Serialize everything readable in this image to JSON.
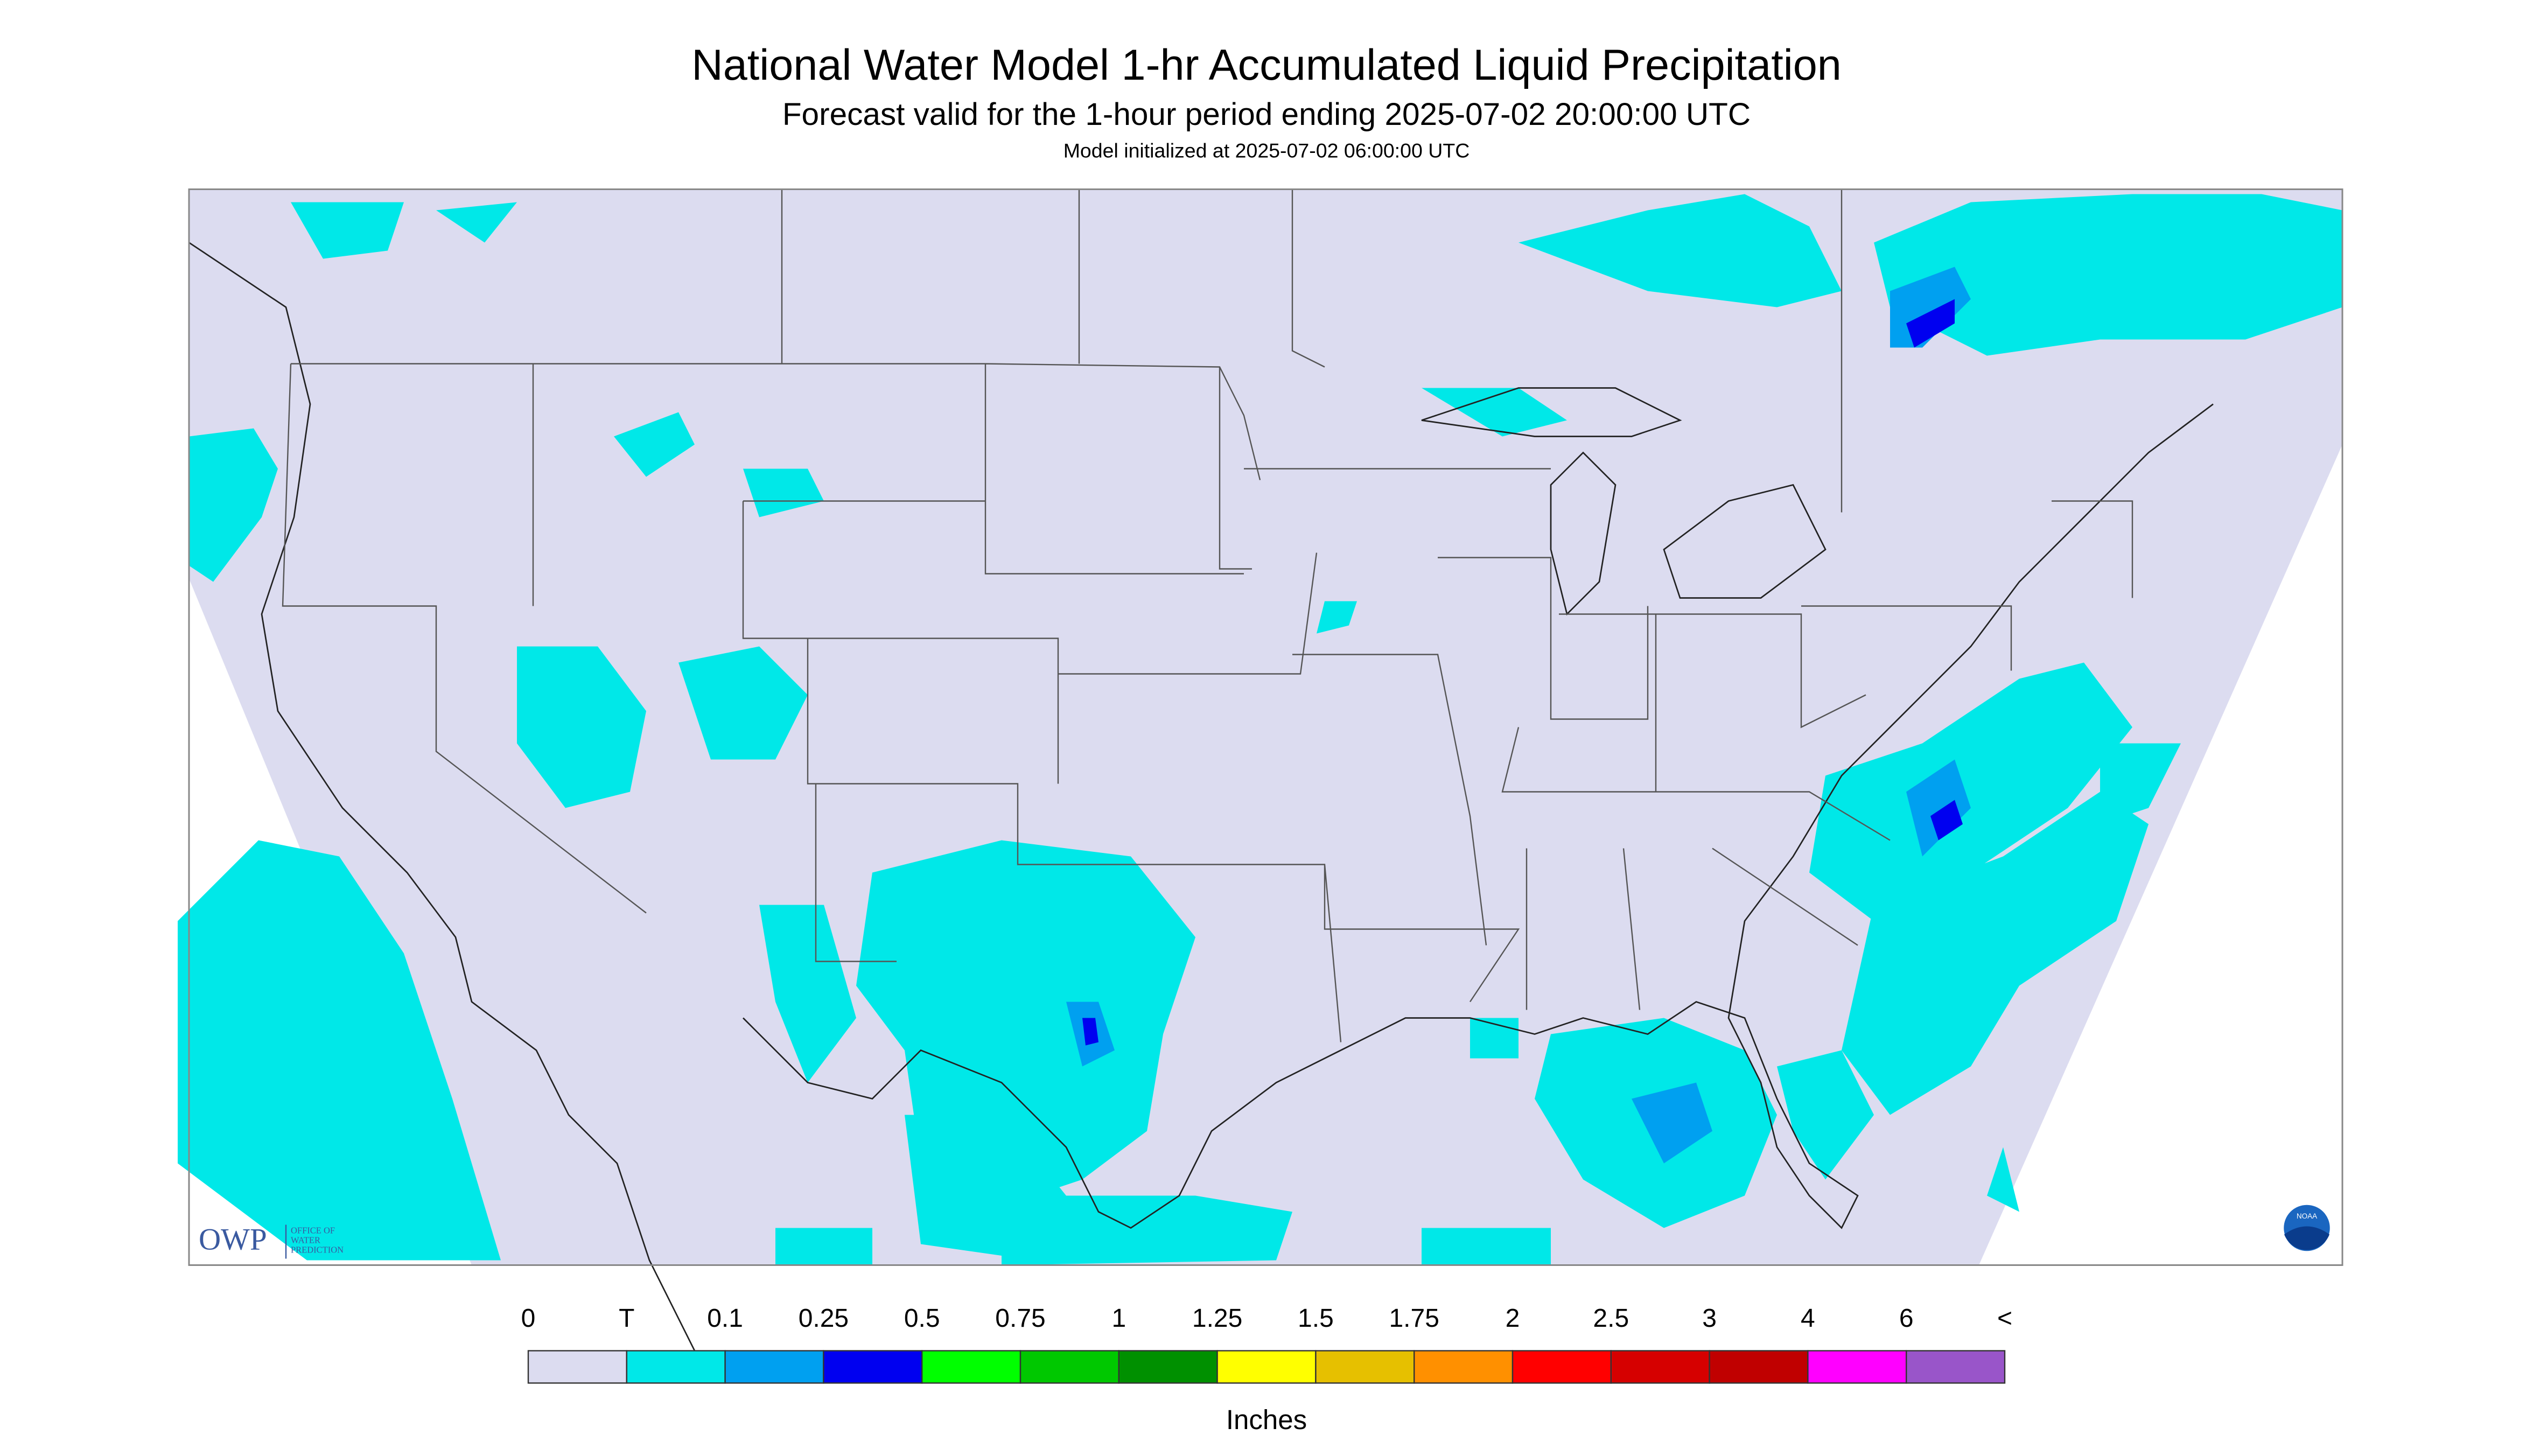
{
  "header": {
    "title": "National Water Model 1-hr Accumulated Liquid Precipitation",
    "subtitle": "Forecast valid for the 1-hour period ending 2025-07-02 20:00:00 UTC",
    "note": "Model initialized at 2025-07-02 06:00:00 UTC"
  },
  "legend": {
    "labels": [
      "0",
      "T",
      "0.1",
      "0.25",
      "0.5",
      "0.75",
      "1",
      "1.25",
      "1.5",
      "1.75",
      "2",
      "2.5",
      "3",
      "4",
      "6",
      "<"
    ],
    "colors": [
      "#dcdcf0",
      "#00e8e8",
      "#00a0f0",
      "#0000f0",
      "#00ff00",
      "#00c800",
      "#009000",
      "#ffff00",
      "#e6c000",
      "#ff9000",
      "#ff0000",
      "#d60000",
      "#c00000",
      "#ff00ff",
      "#9955c9"
    ],
    "unit": "Inches"
  },
  "logos": {
    "owp": "OWP",
    "owp_lines": [
      "OFFICE OF",
      "WATER",
      "PREDICTION"
    ],
    "noaa": "NOAA"
  }
}
